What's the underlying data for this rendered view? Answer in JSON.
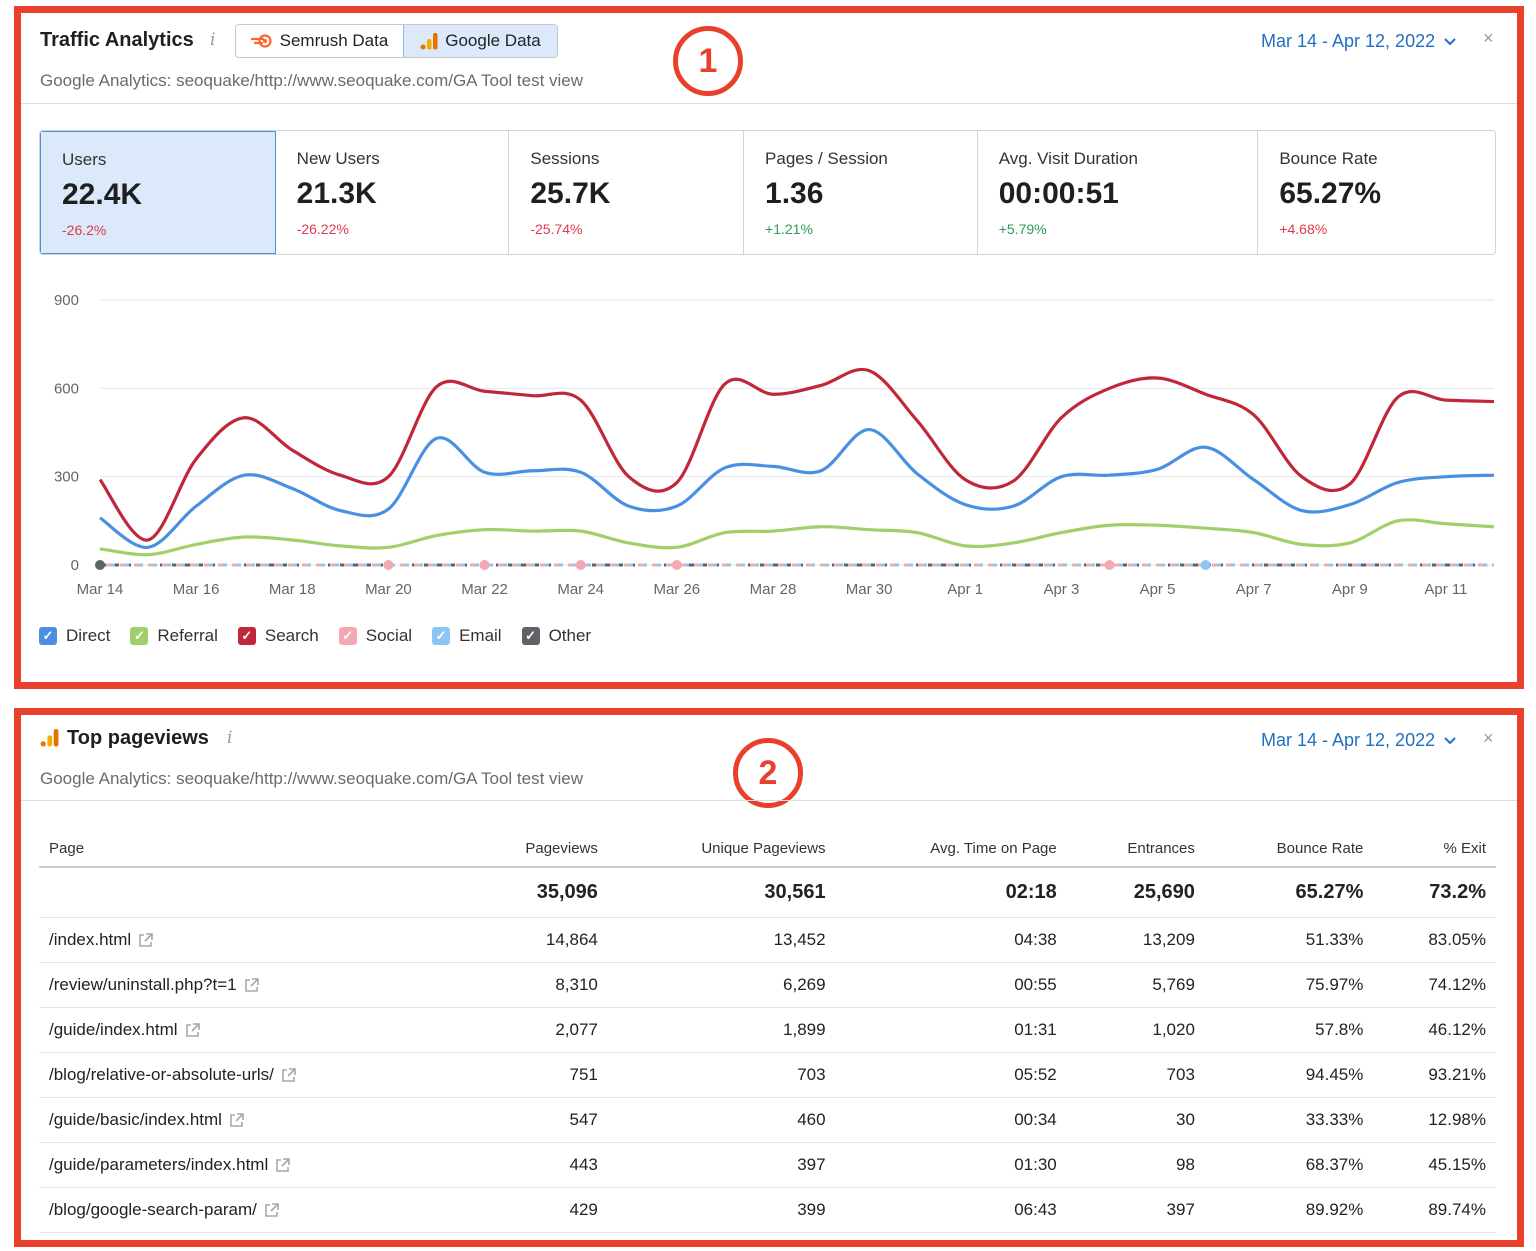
{
  "traffic": {
    "title": "Traffic Analytics",
    "info": "i",
    "toggle": {
      "semrush": "Semrush Data",
      "google": "Google Data",
      "active": "google"
    },
    "subtitle": "Google Analytics: seoquake/http://www.seoquake.com/GA Tool test view",
    "date_range": "Mar 14 - Apr 12, 2022",
    "close": "×",
    "badge": "1",
    "metrics": [
      {
        "label": "Users",
        "value": "22.4K",
        "change": "-26.2%",
        "trend": "neg",
        "active": true
      },
      {
        "label": "New Users",
        "value": "21.3K",
        "change": "-26.22%",
        "trend": "neg",
        "active": false
      },
      {
        "label": "Sessions",
        "value": "25.7K",
        "change": "-25.74%",
        "trend": "neg",
        "active": false
      },
      {
        "label": "Pages / Session",
        "value": "1.36",
        "change": "+1.21%",
        "trend": "pos",
        "active": false
      },
      {
        "label": "Avg. Visit Duration",
        "value": "00:00:51",
        "change": "+5.79%",
        "trend": "pos",
        "active": false
      },
      {
        "label": "Bounce Rate",
        "value": "65.27%",
        "change": "+4.68%",
        "trend": "neg",
        "active": false
      }
    ],
    "legend": [
      {
        "name": "Direct",
        "color": "#4a90e2"
      },
      {
        "name": "Referral",
        "color": "#9fd06a"
      },
      {
        "name": "Search",
        "color": "#c1273a"
      },
      {
        "name": "Social",
        "color": "#f2a9b2"
      },
      {
        "name": "Email",
        "color": "#8ec5f5"
      },
      {
        "name": "Other",
        "color": "#5f6368"
      }
    ]
  },
  "chart_data": {
    "type": "line",
    "x": [
      "Mar 14",
      "Mar 15",
      "Mar 16",
      "Mar 17",
      "Mar 18",
      "Mar 19",
      "Mar 20",
      "Mar 21",
      "Mar 22",
      "Mar 23",
      "Mar 24",
      "Mar 25",
      "Mar 26",
      "Mar 27",
      "Mar 28",
      "Mar 29",
      "Mar 30",
      "Mar 31",
      "Apr 1",
      "Apr 2",
      "Apr 3",
      "Apr 4",
      "Apr 5",
      "Apr 6",
      "Apr 7",
      "Apr 8",
      "Apr 9",
      "Apr 10",
      "Apr 11",
      "Apr 12"
    ],
    "x_tick_labels": [
      "Mar 14",
      "Mar 16",
      "Mar 18",
      "Mar 20",
      "Mar 22",
      "Mar 24",
      "Mar 26",
      "Mar 28",
      "Mar 30",
      "Apr 1",
      "Apr 3",
      "Apr 5",
      "Apr 7",
      "Apr 9",
      "Apr 11"
    ],
    "y_ticks": [
      0,
      300,
      600,
      900
    ],
    "ylim": [
      0,
      900
    ],
    "grid": true,
    "legend_position": "bottom-left",
    "series": [
      {
        "name": "Search",
        "color": "#c1273a",
        "values": [
          290,
          85,
          360,
          500,
          390,
          305,
          300,
          605,
          590,
          575,
          560,
          300,
          280,
          615,
          580,
          610,
          660,
          490,
          290,
          285,
          500,
          600,
          635,
          580,
          510,
          300,
          275,
          570,
          560,
          555
        ]
      },
      {
        "name": "Direct",
        "color": "#4a90e2",
        "values": [
          160,
          60,
          200,
          305,
          260,
          185,
          190,
          430,
          315,
          320,
          315,
          200,
          200,
          330,
          335,
          320,
          460,
          310,
          205,
          200,
          300,
          305,
          325,
          400,
          290,
          185,
          205,
          280,
          300,
          305
        ]
      },
      {
        "name": "Referral",
        "color": "#9fd06a",
        "values": [
          55,
          35,
          70,
          95,
          85,
          65,
          60,
          100,
          120,
          115,
          115,
          75,
          60,
          110,
          115,
          130,
          120,
          110,
          65,
          75,
          110,
          135,
          135,
          125,
          110,
          70,
          75,
          150,
          140,
          130
        ]
      },
      {
        "name": "Social",
        "color": "#f2a9b2",
        "values": [
          0,
          0,
          0,
          0,
          0,
          0,
          0,
          0,
          0,
          0,
          0,
          0,
          0,
          0,
          0,
          0,
          0,
          0,
          0,
          0,
          0,
          0,
          0,
          0,
          0,
          0,
          0,
          0,
          0,
          0
        ]
      },
      {
        "name": "Email",
        "color": "#8ec5f5",
        "values": [
          0,
          0,
          0,
          0,
          0,
          0,
          0,
          0,
          0,
          0,
          0,
          0,
          0,
          0,
          0,
          0,
          0,
          0,
          0,
          0,
          0,
          0,
          0,
          0,
          0,
          0,
          0,
          0,
          0,
          0
        ]
      },
      {
        "name": "Other",
        "color": "#5f6368",
        "values": [
          0,
          0,
          0,
          0,
          0,
          0,
          0,
          0,
          0,
          0,
          0,
          0,
          0,
          0,
          0,
          0,
          0,
          0,
          0,
          0,
          0,
          0,
          0,
          0,
          0,
          0,
          0,
          0,
          0,
          0
        ]
      }
    ]
  },
  "pageviews": {
    "title": "Top pageviews",
    "info": "i",
    "subtitle": "Google Analytics: seoquake/http://www.seoquake.com/GA Tool test view",
    "date_range": "Mar 14 - Apr 12, 2022",
    "close": "×",
    "badge": "2",
    "columns": [
      "Page",
      "Pageviews",
      "Unique Pageviews",
      "Avg. Time on Page",
      "Entrances",
      "Bounce Rate",
      "% Exit"
    ],
    "totals": [
      "",
      "35,096",
      "30,561",
      "02:18",
      "25,690",
      "65.27%",
      "73.2%"
    ],
    "rows": [
      [
        "/index.html",
        "14,864",
        "13,452",
        "04:38",
        "13,209",
        "51.33%",
        "83.05%"
      ],
      [
        "/review/uninstall.php?t=1",
        "8,310",
        "6,269",
        "00:55",
        "5,769",
        "75.97%",
        "74.12%"
      ],
      [
        "/guide/index.html",
        "2,077",
        "1,899",
        "01:31",
        "1,020",
        "57.8%",
        "46.12%"
      ],
      [
        "/blog/relative-or-absolute-urls/",
        "751",
        "703",
        "05:52",
        "703",
        "94.45%",
        "93.21%"
      ],
      [
        "/guide/basic/index.html",
        "547",
        "460",
        "00:34",
        "30",
        "33.33%",
        "12.98%"
      ],
      [
        "/guide/parameters/index.html",
        "443",
        "397",
        "01:30",
        "98",
        "68.37%",
        "45.15%"
      ],
      [
        "/blog/google-search-param/",
        "429",
        "399",
        "06:43",
        "397",
        "89.92%",
        "89.74%"
      ]
    ]
  }
}
